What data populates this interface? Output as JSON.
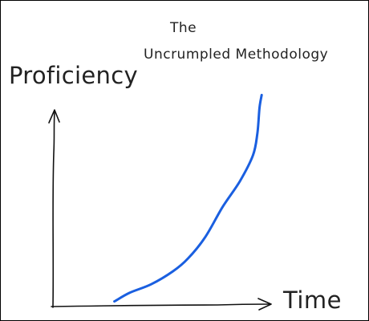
{
  "chart_data": {
    "type": "line",
    "title_lines": [
      "The",
      "Uncrumpled Methodology"
    ],
    "xlabel": "Time",
    "ylabel": "Proficiency",
    "xlim": [
      0,
      10
    ],
    "ylim": [
      0,
      10
    ],
    "grid": false,
    "axes_style": "hand-drawn arrows, no ticks",
    "series": [
      {
        "color": "#1a5fe0",
        "x": [
          2.8,
          3.5,
          4.5,
          5.5,
          6.2,
          7.0,
          7.8,
          8.6,
          9.2,
          9.4,
          9.5,
          9.6
        ],
        "y": [
          0.2,
          0.6,
          1.0,
          1.6,
          2.2,
          3.2,
          4.6,
          5.8,
          7.0,
          8.0,
          9.2,
          9.8
        ]
      }
    ]
  },
  "colors": {
    "axis": "#111111",
    "line": "#1a5fe0",
    "text": "#222222"
  }
}
